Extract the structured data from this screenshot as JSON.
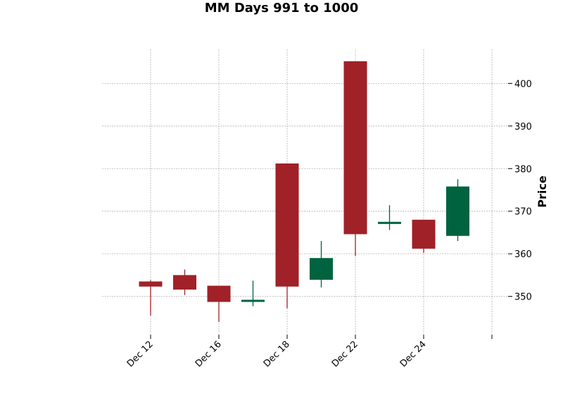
{
  "chart_data": {
    "type": "candlestick",
    "title": "MM Days 991 to 1000",
    "xlabel": "",
    "ylabel": "Price",
    "ylim": [
      341,
      408
    ],
    "grid": true,
    "y_axis_side": "right",
    "x_tick_labels": [
      "Dec 12",
      "Dec 16",
      "Dec 18",
      "Dec 22",
      "Dec 24",
      ""
    ],
    "y_ticks": [
      350,
      360,
      370,
      380,
      390,
      400
    ],
    "colors": {
      "up": "#006340",
      "down": "#a02128",
      "grid": "#b0b0b0"
    },
    "candles": [
      {
        "open": 353.5,
        "high": 353.8,
        "low": 345.5,
        "close": 352.3
      },
      {
        "open": 355.0,
        "high": 356.3,
        "low": 350.3,
        "close": 351.6
      },
      {
        "open": 352.5,
        "high": 352.5,
        "low": 344.0,
        "close": 348.7
      },
      {
        "open": 348.9,
        "high": 353.7,
        "low": 347.7,
        "close": 349.2
      },
      {
        "open": 381.2,
        "high": 381.2,
        "low": 347.2,
        "close": 352.3
      },
      {
        "open": 353.9,
        "high": 363.0,
        "low": 352.1,
        "close": 359.0
      },
      {
        "open": 405.2,
        "high": 405.2,
        "low": 359.5,
        "close": 364.6
      },
      {
        "open": 367.0,
        "high": 371.4,
        "low": 365.6,
        "close": 367.5
      },
      {
        "open": 368.0,
        "high": 368.0,
        "low": 360.2,
        "close": 361.2
      },
      {
        "open": 364.2,
        "high": 377.5,
        "low": 363.0,
        "close": 375.8
      }
    ]
  }
}
